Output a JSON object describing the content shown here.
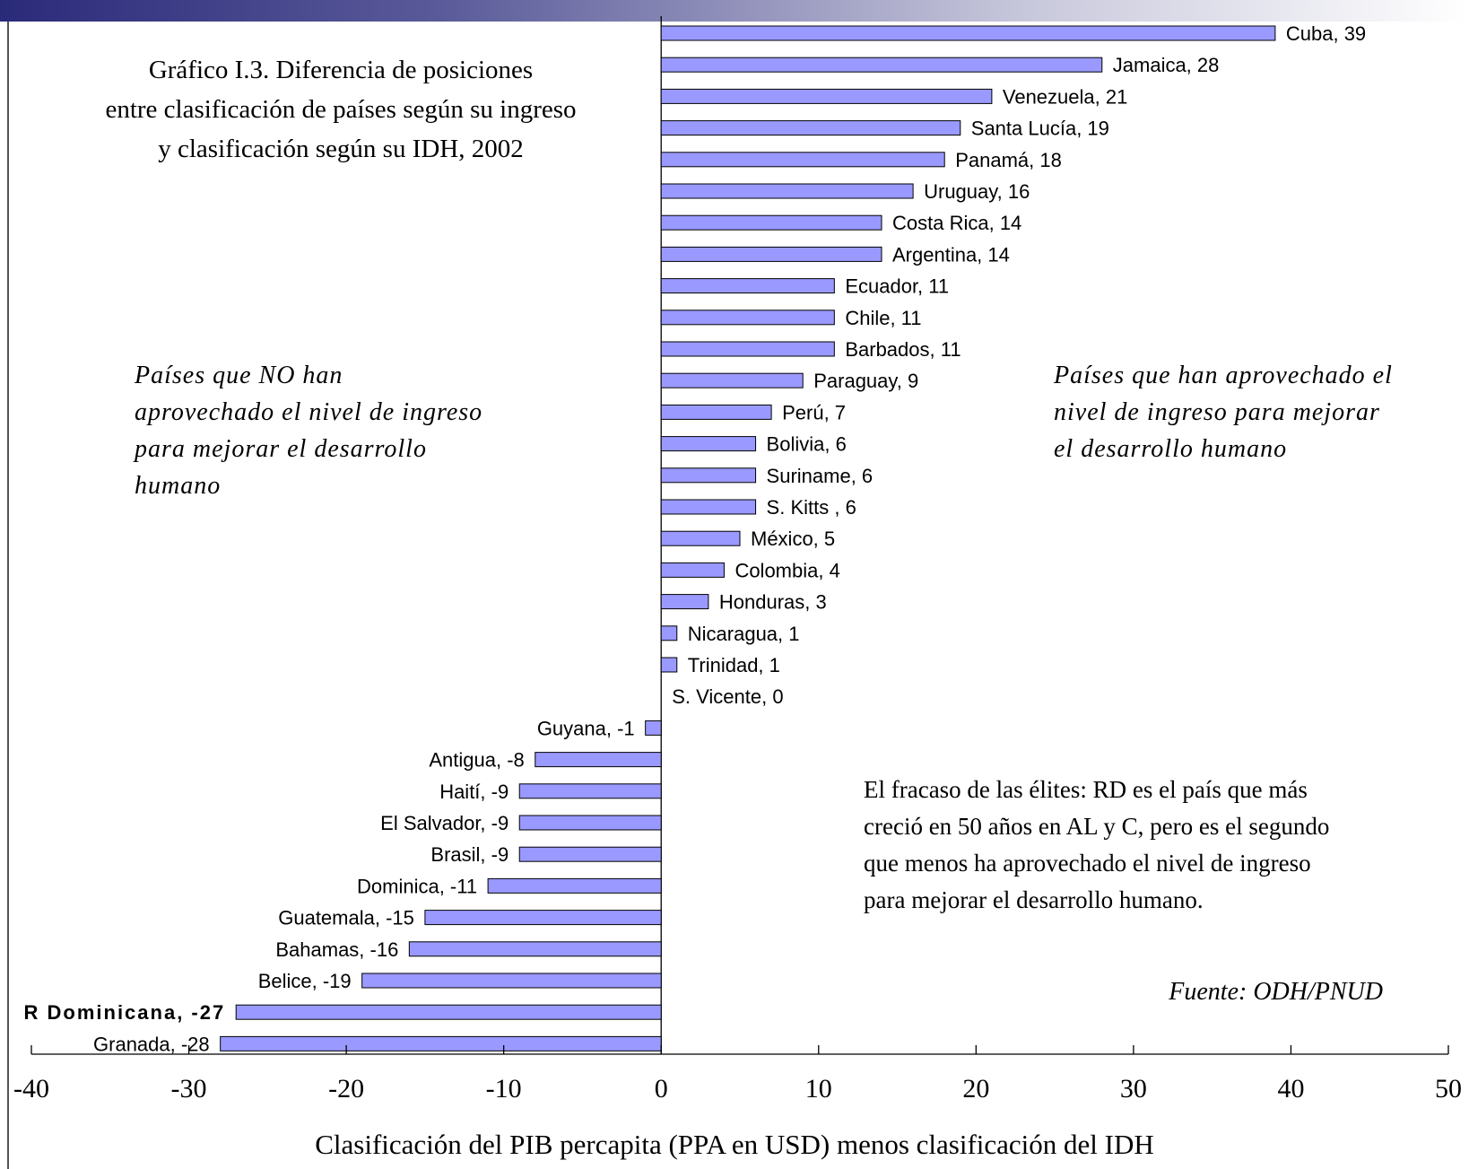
{
  "title_lines": [
    "Gráfico I.3. Diferencia de posiciones",
    "entre clasificación de países según su ingreso",
    "y clasificación según su IDH, 2002"
  ],
  "note_left_lines": [
    "Países que NO han",
    "aprovechado el nivel de ingreso",
    "para mejorar el desarrollo",
    "humano"
  ],
  "note_right_lines": [
    "Países que han aprovechado el",
    "nivel de ingreso para mejorar",
    "el desarrollo humano"
  ],
  "comment_lines": [
    "El fracaso de las élites: RD es el país que más",
    "creció en 50 años en AL y C, pero es el segundo",
    "que menos ha aprovechado el nivel de ingreso",
    "para mejorar el desarrollo humano."
  ],
  "source": "Fuente: ODH/PNUD",
  "colors": {
    "bar_fill": "#9999ff",
    "bar_stroke": "#000000",
    "top_band": "#2a2a7a"
  },
  "chart_data": {
    "type": "bar",
    "orientation": "horizontal",
    "xlabel": "Clasificación del PIB percapita (PPA en USD) menos clasificación del IDH",
    "xlim": [
      -40,
      50
    ],
    "xticks": [
      "-40",
      "-30",
      "-20",
      "-10",
      "0",
      "10",
      "20",
      "30",
      "40",
      "50"
    ],
    "grid": false,
    "bars": [
      {
        "country": "Cuba",
        "value": 39,
        "label": "Cuba, 39"
      },
      {
        "country": "Jamaica",
        "value": 28,
        "label": "Jamaica, 28"
      },
      {
        "country": "Venezuela",
        "value": 21,
        "label": "Venezuela, 21"
      },
      {
        "country": "Santa Lucía",
        "value": 19,
        "label": "Santa Lucía, 19"
      },
      {
        "country": "Panamá",
        "value": 18,
        "label": "Panamá, 18"
      },
      {
        "country": "Uruguay",
        "value": 16,
        "label": "Uruguay, 16"
      },
      {
        "country": "Costa Rica",
        "value": 14,
        "label": "Costa Rica, 14"
      },
      {
        "country": "Argentina",
        "value": 14,
        "label": "Argentina, 14"
      },
      {
        "country": "Ecuador",
        "value": 11,
        "label": "Ecuador, 11"
      },
      {
        "country": "Chile",
        "value": 11,
        "label": "Chile, 11"
      },
      {
        "country": "Barbados",
        "value": 11,
        "label": "Barbados, 11"
      },
      {
        "country": "Paraguay",
        "value": 9,
        "label": "Paraguay, 9"
      },
      {
        "country": "Perú",
        "value": 7,
        "label": "Perú, 7"
      },
      {
        "country": "Bolivia",
        "value": 6,
        "label": "Bolivia, 6"
      },
      {
        "country": "Suriname",
        "value": 6,
        "label": "Suriname, 6"
      },
      {
        "country": "S. Kitts",
        "value": 6,
        "label": "S. Kitts , 6"
      },
      {
        "country": "México",
        "value": 5,
        "label": "México, 5"
      },
      {
        "country": "Colombia",
        "value": 4,
        "label": "Colombia, 4"
      },
      {
        "country": "Honduras",
        "value": 3,
        "label": "Honduras, 3"
      },
      {
        "country": "Nicaragua",
        "value": 1,
        "label": "Nicaragua, 1"
      },
      {
        "country": "Trinidad",
        "value": 1,
        "label": "Trinidad, 1"
      },
      {
        "country": "S. Vicente",
        "value": 0,
        "label": "S. Vicente, 0"
      },
      {
        "country": "Guyana",
        "value": -1,
        "label": "Guyana, -1"
      },
      {
        "country": "Antigua",
        "value": -8,
        "label": "Antigua, -8"
      },
      {
        "country": "Haití",
        "value": -9,
        "label": "Haití, -9"
      },
      {
        "country": "El Salvador",
        "value": -9,
        "label": "El Salvador, -9"
      },
      {
        "country": "Brasil",
        "value": -9,
        "label": "Brasil, -9"
      },
      {
        "country": "Dominica",
        "value": -11,
        "label": "Dominica, -11"
      },
      {
        "country": "Guatemala",
        "value": -15,
        "label": "Guatemala, -15"
      },
      {
        "country": "Bahamas",
        "value": -16,
        "label": "Bahamas, -16"
      },
      {
        "country": "Belice",
        "value": -19,
        "label": "Belice, -19"
      },
      {
        "country": "R Dominicana",
        "value": -27,
        "label": "R Dominicana, -27",
        "bold": true
      },
      {
        "country": "Granada",
        "value": -28,
        "label": "Granada, -28"
      }
    ]
  }
}
